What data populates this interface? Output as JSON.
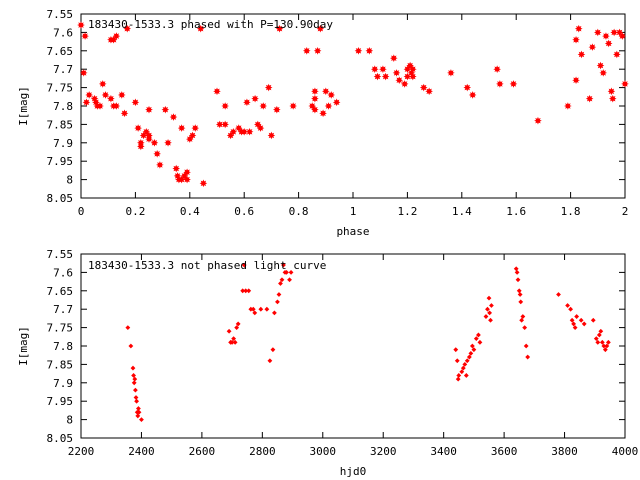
{
  "chart_data": [
    {
      "type": "scatter",
      "title": "183430-1533.3 phased with P=130.90day",
      "xlabel": "phase",
      "ylabel": "I[mag]",
      "xlim": [
        0,
        2
      ],
      "ylim": [
        8.05,
        7.55
      ],
      "y_inverted": true,
      "xticks": [
        0,
        0.2,
        0.4,
        0.6,
        0.8,
        1,
        1.2,
        1.4,
        1.6,
        1.8,
        2
      ],
      "yticks": [
        7.55,
        7.6,
        7.65,
        7.7,
        7.75,
        7.8,
        7.85,
        7.9,
        7.95,
        8,
        8.05
      ],
      "xtick_labels": [
        "0",
        "0.2",
        "0.4",
        "0.6",
        "0.8",
        "1",
        "1.2",
        "1.4",
        "1.6",
        "1.8",
        "2"
      ],
      "ytick_labels": [
        "7.55",
        "7.6",
        "7.65",
        "7.7",
        "7.75",
        "7.8",
        "7.85",
        "7.9",
        "7.95",
        "8",
        "8.05"
      ],
      "grid": false,
      "marker": "star",
      "color": "#ff0000",
      "points": [
        [
          0.0,
          7.58
        ],
        [
          0.01,
          7.71
        ],
        [
          0.015,
          7.61
        ],
        [
          0.02,
          7.79
        ],
        [
          0.03,
          7.77
        ],
        [
          0.05,
          7.78
        ],
        [
          0.055,
          7.79
        ],
        [
          0.06,
          7.8
        ],
        [
          0.07,
          7.8
        ],
        [
          0.08,
          7.74
        ],
        [
          0.09,
          7.77
        ],
        [
          0.11,
          7.78
        ],
        [
          0.12,
          7.8
        ],
        [
          0.13,
          7.8
        ],
        [
          0.11,
          7.62
        ],
        [
          0.12,
          7.62
        ],
        [
          0.13,
          7.61
        ],
        [
          0.15,
          7.77
        ],
        [
          0.16,
          7.82
        ],
        [
          0.17,
          7.59
        ],
        [
          0.2,
          7.79
        ],
        [
          0.21,
          7.86
        ],
        [
          0.22,
          7.9
        ],
        [
          0.22,
          7.91
        ],
        [
          0.23,
          7.88
        ],
        [
          0.24,
          7.87
        ],
        [
          0.25,
          7.89
        ],
        [
          0.25,
          7.88
        ],
        [
          0.25,
          7.81
        ],
        [
          0.27,
          7.9
        ],
        [
          0.28,
          7.93
        ],
        [
          0.29,
          7.96
        ],
        [
          0.31,
          7.81
        ],
        [
          0.32,
          7.9
        ],
        [
          0.34,
          7.83
        ],
        [
          0.35,
          7.97
        ],
        [
          0.355,
          7.99
        ],
        [
          0.36,
          8.0
        ],
        [
          0.37,
          7.86
        ],
        [
          0.37,
          8.0
        ],
        [
          0.38,
          7.99
        ],
        [
          0.39,
          8.0
        ],
        [
          0.39,
          7.98
        ],
        [
          0.4,
          7.89
        ],
        [
          0.41,
          7.88
        ],
        [
          0.42,
          7.86
        ],
        [
          0.44,
          7.59
        ],
        [
          0.45,
          8.01
        ],
        [
          0.5,
          7.76
        ],
        [
          0.51,
          7.85
        ],
        [
          0.53,
          7.85
        ],
        [
          0.53,
          7.8
        ],
        [
          0.55,
          7.88
        ],
        [
          0.56,
          7.87
        ],
        [
          0.58,
          7.86
        ],
        [
          0.59,
          7.87
        ],
        [
          0.6,
          7.87
        ],
        [
          0.61,
          7.79
        ],
        [
          0.62,
          7.87
        ],
        [
          0.64,
          7.78
        ],
        [
          0.65,
          7.85
        ],
        [
          0.66,
          7.86
        ],
        [
          0.67,
          7.8
        ],
        [
          0.69,
          7.75
        ],
        [
          0.7,
          7.88
        ],
        [
          0.72,
          7.81
        ],
        [
          0.73,
          7.59
        ],
        [
          0.78,
          7.8
        ],
        [
          0.83,
          7.65
        ],
        [
          0.85,
          7.8
        ],
        [
          0.86,
          7.81
        ],
        [
          0.86,
          7.78
        ],
        [
          0.86,
          7.76
        ],
        [
          0.87,
          7.65
        ],
        [
          0.88,
          7.59
        ],
        [
          0.89,
          7.82
        ],
        [
          0.9,
          7.76
        ],
        [
          0.91,
          7.8
        ],
        [
          0.92,
          7.77
        ],
        [
          0.94,
          7.79
        ],
        [
          1.02,
          7.65
        ],
        [
          1.06,
          7.65
        ],
        [
          1.08,
          7.7
        ],
        [
          1.09,
          7.72
        ],
        [
          1.11,
          7.7
        ],
        [
          1.12,
          7.72
        ],
        [
          1.15,
          7.67
        ],
        [
          1.16,
          7.71
        ],
        [
          1.17,
          7.73
        ],
        [
          1.19,
          7.74
        ],
        [
          1.2,
          7.7
        ],
        [
          1.2,
          7.72
        ],
        [
          1.21,
          7.69
        ],
        [
          1.215,
          7.71
        ],
        [
          1.22,
          7.72
        ],
        [
          1.22,
          7.7
        ],
        [
          1.26,
          7.75
        ],
        [
          1.28,
          7.76
        ],
        [
          1.36,
          7.71
        ],
        [
          1.42,
          7.75
        ],
        [
          1.44,
          7.77
        ],
        [
          1.53,
          7.7
        ],
        [
          1.54,
          7.74
        ],
        [
          1.59,
          7.74
        ],
        [
          1.68,
          7.84
        ],
        [
          1.79,
          7.8
        ],
        [
          1.82,
          7.62
        ],
        [
          1.83,
          7.59
        ],
        [
          1.84,
          7.66
        ],
        [
          1.82,
          7.73
        ],
        [
          1.87,
          7.78
        ],
        [
          1.88,
          7.64
        ],
        [
          1.9,
          7.6
        ],
        [
          1.91,
          7.69
        ],
        [
          1.92,
          7.71
        ],
        [
          1.93,
          7.61
        ],
        [
          1.94,
          7.63
        ],
        [
          1.95,
          7.76
        ],
        [
          1.955,
          7.78
        ],
        [
          1.96,
          7.6
        ],
        [
          1.97,
          7.66
        ],
        [
          1.98,
          7.6
        ],
        [
          1.99,
          7.61
        ],
        [
          2.0,
          7.74
        ]
      ]
    },
    {
      "type": "scatter",
      "title": "183430-1533.3 not phased light curve",
      "xlabel": "hjd0",
      "ylabel": "I[mag]",
      "xlim": [
        2200,
        4000
      ],
      "ylim": [
        8.05,
        7.55
      ],
      "y_inverted": true,
      "xticks": [
        2200,
        2400,
        2600,
        2800,
        3000,
        3200,
        3400,
        3600,
        3800,
        4000
      ],
      "yticks": [
        7.55,
        7.6,
        7.65,
        7.7,
        7.75,
        7.8,
        7.85,
        7.9,
        7.95,
        8,
        8.05
      ],
      "xtick_labels": [
        "2200",
        "2400",
        "2600",
        "2800",
        "3000",
        "3200",
        "3400",
        "3600",
        "3800",
        "4000"
      ],
      "ytick_labels": [
        "7.55",
        "7.6",
        "7.65",
        "7.7",
        "7.75",
        "7.8",
        "7.85",
        "7.9",
        "7.95",
        "8",
        "8.05"
      ],
      "grid": false,
      "marker": "diamond",
      "color": "#ff0000",
      "points": [
        [
          2355,
          7.75
        ],
        [
          2365,
          7.8
        ],
        [
          2372,
          7.86
        ],
        [
          2374,
          7.88
        ],
        [
          2376,
          7.9
        ],
        [
          2378,
          7.89
        ],
        [
          2380,
          7.92
        ],
        [
          2382,
          7.94
        ],
        [
          2384,
          7.95
        ],
        [
          2386,
          7.98
        ],
        [
          2388,
          7.99
        ],
        [
          2390,
          7.97
        ],
        [
          2392,
          7.98
        ],
        [
          2400,
          8.0
        ],
        [
          2690,
          7.76
        ],
        [
          2695,
          7.79
        ],
        [
          2700,
          7.79
        ],
        [
          2705,
          7.78
        ],
        [
          2710,
          7.79
        ],
        [
          2715,
          7.75
        ],
        [
          2720,
          7.74
        ],
        [
          2735,
          7.65
        ],
        [
          2740,
          7.58
        ],
        [
          2745,
          7.65
        ],
        [
          2755,
          7.65
        ],
        [
          2762,
          7.7
        ],
        [
          2770,
          7.7
        ],
        [
          2775,
          7.71
        ],
        [
          2795,
          7.7
        ],
        [
          2815,
          7.7
        ],
        [
          2825,
          7.84
        ],
        [
          2835,
          7.81
        ],
        [
          2840,
          7.71
        ],
        [
          2850,
          7.68
        ],
        [
          2855,
          7.66
        ],
        [
          2860,
          7.63
        ],
        [
          2865,
          7.62
        ],
        [
          2870,
          7.58
        ],
        [
          2875,
          7.6
        ],
        [
          2880,
          7.6
        ],
        [
          2890,
          7.62
        ],
        [
          2895,
          7.6
        ],
        [
          3440,
          7.81
        ],
        [
          3445,
          7.84
        ],
        [
          3448,
          7.89
        ],
        [
          3450,
          7.88
        ],
        [
          3460,
          7.87
        ],
        [
          3465,
          7.86
        ],
        [
          3470,
          7.85
        ],
        [
          3475,
          7.88
        ],
        [
          3478,
          7.84
        ],
        [
          3485,
          7.83
        ],
        [
          3490,
          7.82
        ],
        [
          3495,
          7.8
        ],
        [
          3500,
          7.81
        ],
        [
          3508,
          7.78
        ],
        [
          3515,
          7.77
        ],
        [
          3520,
          7.79
        ],
        [
          3540,
          7.72
        ],
        [
          3545,
          7.7
        ],
        [
          3550,
          7.67
        ],
        [
          3552,
          7.71
        ],
        [
          3555,
          7.73
        ],
        [
          3558,
          7.69
        ],
        [
          3640,
          7.59
        ],
        [
          3643,
          7.6
        ],
        [
          3646,
          7.62
        ],
        [
          3650,
          7.65
        ],
        [
          3653,
          7.66
        ],
        [
          3655,
          7.68
        ],
        [
          3658,
          7.73
        ],
        [
          3662,
          7.72
        ],
        [
          3668,
          7.75
        ],
        [
          3673,
          7.8
        ],
        [
          3678,
          7.83
        ],
        [
          3780,
          7.66
        ],
        [
          3810,
          7.69
        ],
        [
          3820,
          7.7
        ],
        [
          3825,
          7.73
        ],
        [
          3830,
          7.74
        ],
        [
          3835,
          7.75
        ],
        [
          3840,
          7.72
        ],
        [
          3855,
          7.73
        ],
        [
          3865,
          7.74
        ],
        [
          3895,
          7.73
        ],
        [
          3905,
          7.78
        ],
        [
          3910,
          7.79
        ],
        [
          3915,
          7.77
        ],
        [
          3920,
          7.76
        ],
        [
          3925,
          7.79
        ],
        [
          3930,
          7.8
        ],
        [
          3935,
          7.81
        ],
        [
          3940,
          7.8
        ],
        [
          3945,
          7.79
        ]
      ]
    }
  ]
}
